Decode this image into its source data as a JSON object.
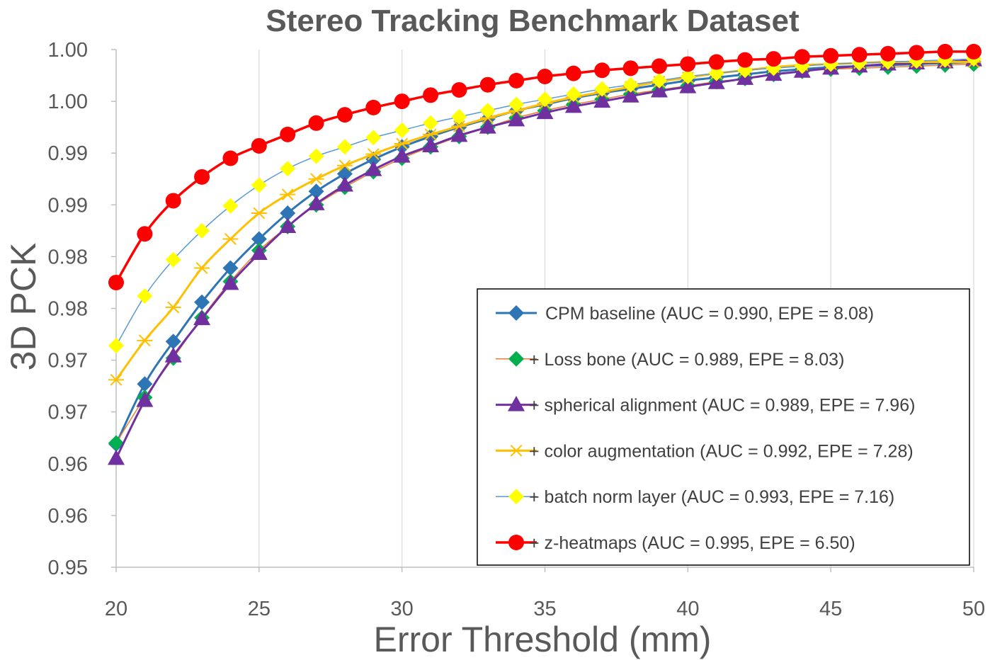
{
  "chart_data": {
    "type": "line",
    "title": "Stereo Tracking Benchmark Dataset",
    "xlabel": "Error Threshold (mm)",
    "ylabel": "3D PCK",
    "xlim": [
      20,
      50
    ],
    "ylim": [
      0.95,
      1.0
    ],
    "x_ticks": [
      20,
      25,
      30,
      35,
      40,
      45,
      50
    ],
    "y_ticks": [
      {
        "value": 0.95,
        "label": "0.95"
      },
      {
        "value": 0.955,
        "label": "0.96"
      },
      {
        "value": 0.96,
        "label": "0.96"
      },
      {
        "value": 0.965,
        "label": "0.97"
      },
      {
        "value": 0.97,
        "label": "0.97"
      },
      {
        "value": 0.975,
        "label": "0.98"
      },
      {
        "value": 0.98,
        "label": "0.98"
      },
      {
        "value": 0.985,
        "label": "0.99"
      },
      {
        "value": 0.99,
        "label": "0.99"
      },
      {
        "value": 0.995,
        "label": "1.00"
      },
      {
        "value": 1.0,
        "label": "1.00"
      }
    ],
    "grid": "vertical",
    "legend_position": "bottom-right",
    "x": [
      20,
      21,
      22,
      23,
      24,
      25,
      26,
      27,
      28,
      29,
      30,
      31,
      32,
      33,
      34,
      35,
      36,
      37,
      38,
      39,
      40,
      41,
      42,
      43,
      44,
      45,
      46,
      47,
      48,
      49,
      50
    ],
    "series": [
      {
        "name": "CPM baseline (AUC = 0.990, EPE = 8.08)",
        "legend": "CPM baseline (AUC = 0.990, EPE = 8.08)",
        "color": "#2E75B6",
        "marker": "diamond",
        "line_width": 3,
        "values": [
          0.9619,
          0.9677,
          0.9718,
          0.9756,
          0.9789,
          0.9817,
          0.9842,
          0.9863,
          0.988,
          0.9894,
          0.9906,
          0.9916,
          0.9925,
          0.9933,
          0.9941,
          0.9947,
          0.9953,
          0.9958,
          0.9962,
          0.9966,
          0.997,
          0.9973,
          0.9976,
          0.9979,
          0.9981,
          0.9983,
          0.9984,
          0.9985,
          0.9986,
          0.9987,
          0.9988
        ]
      },
      {
        "name": "Loss bone (AUC = 0.989, EPE = 8.03)",
        "legend": "+ Loss bone (AUC = 0.989, EPE = 8.03)",
        "color": "#ED7D31",
        "marker": "diamond",
        "marker_color": "#00B050",
        "line_width": 1.5,
        "values": [
          0.962,
          0.9664,
          0.9702,
          0.9741,
          0.9776,
          0.9806,
          0.9829,
          0.985,
          0.9867,
          0.9882,
          0.9895,
          0.9906,
          0.9916,
          0.9925,
          0.9934,
          0.9941,
          0.9947,
          0.9952,
          0.9957,
          0.9961,
          0.9965,
          0.9969,
          0.9972,
          0.9976,
          0.9979,
          0.9981,
          0.9982,
          0.9983,
          0.9984,
          0.9985,
          0.9986
        ]
      },
      {
        "name": "spherical alignment (AUC = 0.989, EPE = 7.96)",
        "legend": "+ spherical alignment (AUC = 0.989, EPE = 7.96)",
        "color": "#7030A0",
        "marker": "triangle",
        "line_width": 3,
        "values": [
          0.9605,
          0.9661,
          0.9704,
          0.974,
          0.9774,
          0.9803,
          0.9829,
          0.9851,
          0.9869,
          0.9884,
          0.9897,
          0.9907,
          0.9917,
          0.9925,
          0.9932,
          0.9939,
          0.9945,
          0.995,
          0.9955,
          0.996,
          0.9964,
          0.9968,
          0.9972,
          0.9976,
          0.9979,
          0.9982,
          0.9984,
          0.9986,
          0.9987,
          0.9988,
          0.999
        ]
      },
      {
        "name": "color augmentation (AUC = 0.992, EPE = 7.28)",
        "legend": "+ color augmentation (AUC = 0.992, EPE = 7.28)",
        "color": "#FFC000",
        "marker": "asterisk",
        "line_width": 3,
        "values": [
          0.9681,
          0.9719,
          0.9751,
          0.9789,
          0.9817,
          0.9842,
          0.986,
          0.9875,
          0.9888,
          0.9899,
          0.9909,
          0.9918,
          0.9926,
          0.9934,
          0.9941,
          0.9948,
          0.9954,
          0.9959,
          0.9964,
          0.9969,
          0.9973,
          0.9977,
          0.998,
          0.9983,
          0.9985,
          0.9986,
          0.9987,
          0.9988,
          0.9988,
          0.9988,
          0.9988
        ]
      },
      {
        "name": "batch norm layer (AUC = 0.993, EPE = 7.16)",
        "legend": "+ batch norm layer (AUC = 0.993, EPE = 7.16)",
        "color": "#5B9BD5",
        "marker": "diamond",
        "marker_color": "#FFFF00",
        "line_width": 1.5,
        "values": [
          0.9714,
          0.9762,
          0.9797,
          0.9825,
          0.9849,
          0.9869,
          0.9885,
          0.9897,
          0.9906,
          0.9915,
          0.9922,
          0.9929,
          0.9935,
          0.9941,
          0.9947,
          0.9952,
          0.9957,
          0.9962,
          0.9966,
          0.997,
          0.9974,
          0.9977,
          0.998,
          0.9982,
          0.9984,
          0.9986,
          0.9987,
          0.9988,
          0.9989,
          0.999,
          0.9991
        ]
      },
      {
        "name": "z-heatmaps (AUC = 0.995, EPE = 6.50)",
        "legend": "+ z-heatmaps (AUC = 0.995, EPE = 6.50)",
        "color": "#FF0000",
        "marker": "circle",
        "line_width": 3.5,
        "values": [
          0.9775,
          0.9822,
          0.9854,
          0.9877,
          0.9895,
          0.9907,
          0.9918,
          0.9929,
          0.9937,
          0.9944,
          0.995,
          0.9956,
          0.9961,
          0.9966,
          0.997,
          0.9974,
          0.9977,
          0.998,
          0.9982,
          0.9984,
          0.9986,
          0.9988,
          0.999,
          0.9991,
          0.9993,
          0.9994,
          0.9995,
          0.9996,
          0.9997,
          0.9998,
          0.9998
        ]
      }
    ]
  }
}
